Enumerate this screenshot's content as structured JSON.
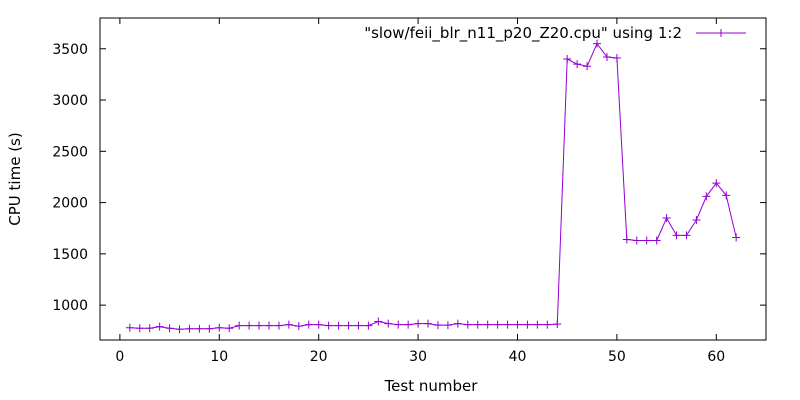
{
  "chart_data": {
    "type": "line",
    "xlabel": "Test number",
    "ylabel": "CPU time (s)",
    "xlim": [
      -2,
      65
    ],
    "ylim": [
      660,
      3800
    ],
    "xticks": [
      0,
      10,
      20,
      30,
      40,
      50,
      60
    ],
    "yticks": [
      1000,
      1500,
      2000,
      2500,
      3000,
      3500
    ],
    "grid": false,
    "legend_position": "top-right",
    "series": [
      {
        "name": "\"slow/feii_blr_n11_p20_Z20.cpu\" using 1:2",
        "color": "#9400d3",
        "marker": "plus",
        "x": [
          1,
          2,
          3,
          4,
          5,
          6,
          7,
          8,
          9,
          10,
          11,
          12,
          13,
          14,
          15,
          16,
          17,
          18,
          19,
          20,
          21,
          22,
          23,
          24,
          25,
          26,
          27,
          28,
          29,
          30,
          31,
          32,
          33,
          34,
          35,
          36,
          37,
          38,
          39,
          40,
          41,
          42,
          43,
          44,
          45,
          46,
          47,
          48,
          49,
          50,
          51,
          52,
          53,
          54,
          55,
          56,
          57,
          58,
          59,
          60,
          61,
          62
        ],
        "y": [
          780,
          775,
          775,
          790,
          775,
          765,
          770,
          770,
          770,
          780,
          775,
          800,
          800,
          800,
          800,
          800,
          810,
          795,
          810,
          810,
          800,
          800,
          800,
          800,
          800,
          840,
          820,
          810,
          810,
          820,
          820,
          805,
          805,
          820,
          810,
          810,
          810,
          810,
          810,
          810,
          810,
          810,
          810,
          815,
          3400,
          3350,
          3330,
          3550,
          3420,
          3410,
          1640,
          1630,
          1630,
          1630,
          1850,
          1680,
          1680,
          1830,
          2060,
          2190,
          2070,
          1660
        ]
      }
    ]
  }
}
